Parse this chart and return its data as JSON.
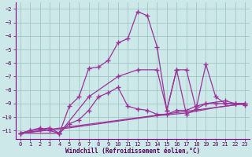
{
  "xlabel": "Windchill (Refroidissement éolien,°C)",
  "background_color": "#cde8e8",
  "line_color": "#993399",
  "grid_color": "#9bbfbf",
  "xlim": [
    -0.5,
    23.5
  ],
  "ylim": [
    -11.6,
    -1.5
  ],
  "yticks": [
    -2,
    -3,
    -4,
    -5,
    -6,
    -7,
    -8,
    -9,
    -10,
    -11
  ],
  "xticks": [
    0,
    1,
    2,
    3,
    4,
    5,
    6,
    7,
    8,
    9,
    10,
    11,
    12,
    13,
    14,
    15,
    16,
    17,
    18,
    19,
    20,
    21,
    22,
    23
  ],
  "series1": [
    [
      0,
      -11.2
    ],
    [
      1,
      -11.0
    ],
    [
      2,
      -10.8
    ],
    [
      3,
      -11.0
    ],
    [
      4,
      -11.2
    ],
    [
      5,
      -10.5
    ],
    [
      6,
      -10.2
    ],
    [
      7,
      -9.5
    ],
    [
      8,
      -8.5
    ],
    [
      9,
      -8.2
    ],
    [
      10,
      -7.8
    ],
    [
      11,
      -9.2
    ],
    [
      12,
      -9.4
    ],
    [
      13,
      -9.5
    ],
    [
      14,
      -9.8
    ],
    [
      15,
      -9.8
    ],
    [
      16,
      -9.5
    ],
    [
      17,
      -9.5
    ],
    [
      18,
      -9.2
    ],
    [
      19,
      -9.0
    ],
    [
      20,
      -9.0
    ],
    [
      21,
      -9.0
    ],
    [
      22,
      -9.0
    ],
    [
      23,
      -9.0
    ]
  ],
  "series2": [
    [
      0,
      -11.2
    ],
    [
      1,
      -11.0
    ],
    [
      2,
      -10.9
    ],
    [
      3,
      -10.8
    ],
    [
      4,
      -11.2
    ],
    [
      5,
      -9.2
    ],
    [
      6,
      -8.5
    ],
    [
      7,
      -6.4
    ],
    [
      8,
      -6.3
    ],
    [
      9,
      -5.8
    ],
    [
      10,
      -4.5
    ],
    [
      11,
      -4.2
    ],
    [
      12,
      -2.2
    ],
    [
      13,
      -2.5
    ],
    [
      14,
      -4.8
    ],
    [
      15,
      -9.5
    ],
    [
      16,
      -6.5
    ],
    [
      17,
      -9.8
    ],
    [
      18,
      -9.4
    ],
    [
      19,
      -6.1
    ],
    [
      20,
      -8.5
    ],
    [
      21,
      -9.0
    ],
    [
      22,
      -9.0
    ],
    [
      23,
      -9.1
    ]
  ],
  "series3": [
    [
      0,
      -11.2
    ],
    [
      4,
      -11.2
    ],
    [
      7,
      -8.5
    ],
    [
      10,
      -7.0
    ],
    [
      12,
      -6.5
    ],
    [
      14,
      -6.5
    ],
    [
      15,
      -9.5
    ],
    [
      16,
      -6.5
    ],
    [
      17,
      -6.5
    ],
    [
      18,
      -9.4
    ],
    [
      19,
      -9.0
    ],
    [
      21,
      -8.8
    ],
    [
      22,
      -9.0
    ],
    [
      23,
      -9.0
    ]
  ],
  "series4_straight": [
    [
      0,
      -11.2
    ],
    [
      23,
      -9.0
    ]
  ],
  "series5_curve": [
    [
      0,
      -11.2
    ],
    [
      5,
      -10.8
    ],
    [
      10,
      -10.3
    ],
    [
      14,
      -9.9
    ],
    [
      17,
      -9.7
    ],
    [
      20,
      -9.3
    ],
    [
      23,
      -9.0
    ]
  ]
}
